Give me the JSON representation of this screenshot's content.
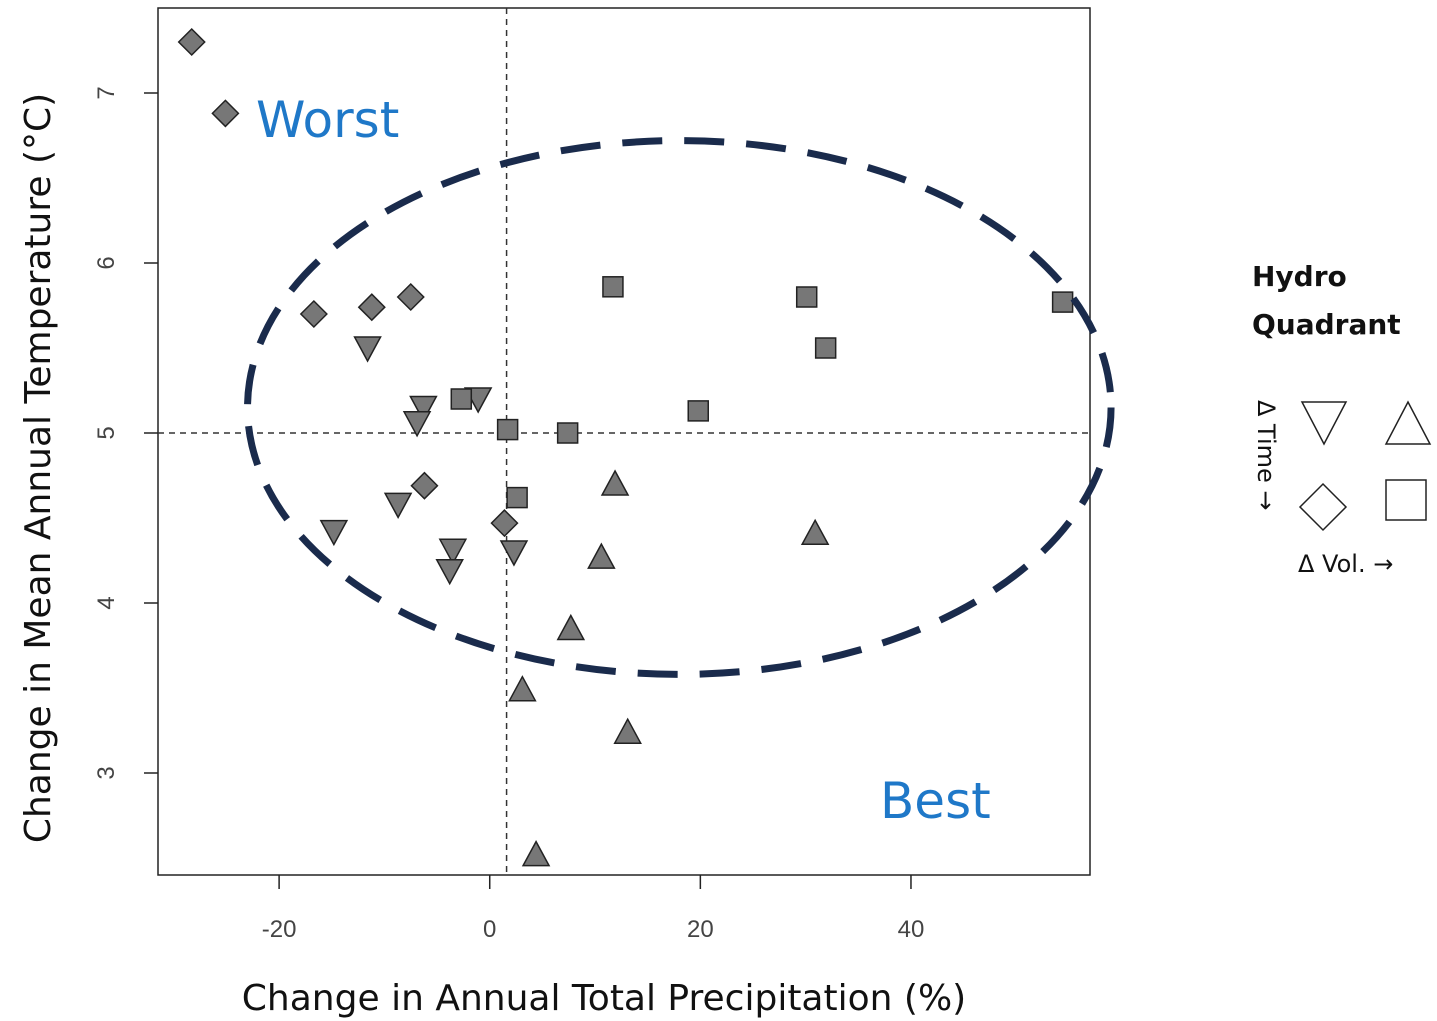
{
  "chart_data": {
    "type": "scatter",
    "xlabel": "Change in Annual Total Precipitation (%)",
    "ylabel": "Change in Mean Annual Temperature (°C)",
    "xlim": [
      -31.5,
      57
    ],
    "ylim": [
      2.4,
      7.5
    ],
    "x_ticks": [
      -20,
      0,
      20,
      40
    ],
    "x_tick_labels": [
      "-20",
      "0",
      "20",
      "40"
    ],
    "y_ticks": [
      3,
      4,
      5,
      6,
      7
    ],
    "y_tick_labels": [
      "3",
      "4",
      "5",
      "6",
      "7"
    ],
    "reference_lines": {
      "x": 1.6,
      "y": 5.0
    },
    "annotations": {
      "worst": "Worst",
      "best": "Best"
    },
    "ellipse": {
      "cx": 18,
      "cy": 5.15,
      "rx": 41,
      "ry": 1.57,
      "color": "#1a2b4c"
    },
    "marker_fill": "#777777",
    "series": [
      {
        "marker": "diamond",
        "points": [
          {
            "x": -28.3,
            "y": 7.3
          },
          {
            "x": -25.1,
            "y": 6.88
          },
          {
            "x": -16.7,
            "y": 5.7
          },
          {
            "x": -11.2,
            "y": 5.74
          },
          {
            "x": -7.5,
            "y": 5.8
          },
          {
            "x": -6.2,
            "y": 4.69
          },
          {
            "x": 1.4,
            "y": 4.47
          }
        ]
      },
      {
        "marker": "triangle-down",
        "points": [
          {
            "x": -11.6,
            "y": 5.5
          },
          {
            "x": -6.3,
            "y": 5.15
          },
          {
            "x": -6.9,
            "y": 5.06
          },
          {
            "x": -1.1,
            "y": 5.2
          },
          {
            "x": -8.7,
            "y": 4.58
          },
          {
            "x": -14.8,
            "y": 4.42
          },
          {
            "x": -3.5,
            "y": 4.31
          },
          {
            "x": -3.8,
            "y": 4.19
          },
          {
            "x": 2.3,
            "y": 4.3
          }
        ]
      },
      {
        "marker": "square",
        "points": [
          {
            "x": 11.7,
            "y": 5.86
          },
          {
            "x": 30.1,
            "y": 5.8
          },
          {
            "x": 31.9,
            "y": 5.5
          },
          {
            "x": 54.4,
            "y": 5.77
          },
          {
            "x": 19.8,
            "y": 5.13
          },
          {
            "x": -2.7,
            "y": 5.2
          },
          {
            "x": 1.7,
            "y": 5.02
          },
          {
            "x": 7.4,
            "y": 5.0
          },
          {
            "x": 2.6,
            "y": 4.62
          }
        ]
      },
      {
        "marker": "triangle-up",
        "points": [
          {
            "x": 11.9,
            "y": 4.7
          },
          {
            "x": 30.9,
            "y": 4.41
          },
          {
            "x": 10.6,
            "y": 4.27
          },
          {
            "x": 7.7,
            "y": 3.85
          },
          {
            "x": 3.1,
            "y": 3.49
          },
          {
            "x": 13.1,
            "y": 3.24
          },
          {
            "x": 4.4,
            "y": 2.52
          }
        ]
      }
    ]
  },
  "legend": {
    "title_line1": "Hydro",
    "title_line2": "Quadrant",
    "time_label": "Δ Time →",
    "vol_label": "Δ Vol. →",
    "symbols": [
      "triangle-down",
      "triangle-up",
      "diamond",
      "square"
    ]
  }
}
